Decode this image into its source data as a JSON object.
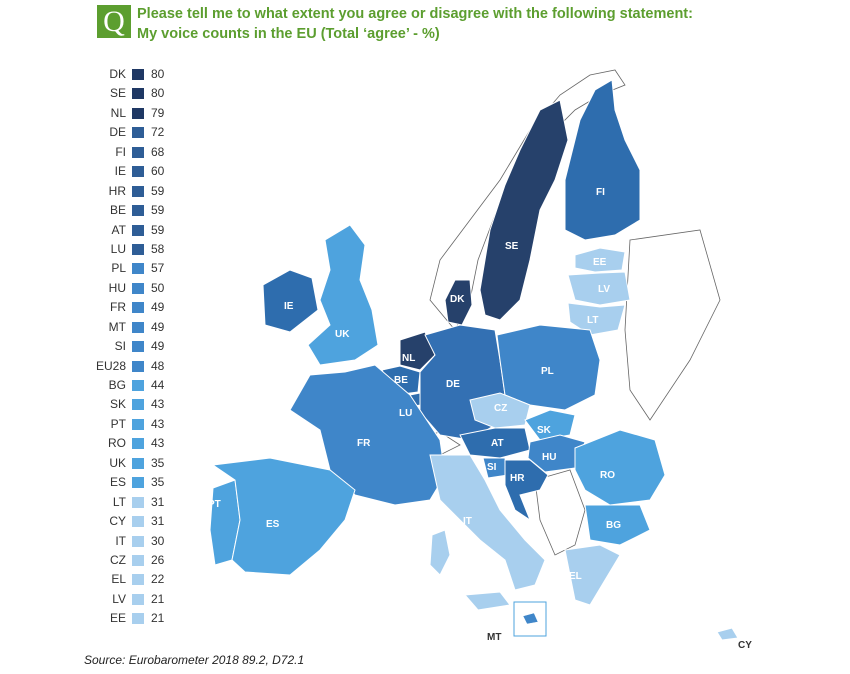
{
  "question_mark": "Q",
  "title": {
    "line1": "Please tell me to what extent you agree or disagree with the following statement:",
    "line2": "My voice counts in the EU (Total ‘agree’ - %)"
  },
  "legend": [
    {
      "code": "DK",
      "value": "80",
      "color": "#1f3864"
    },
    {
      "code": "SE",
      "value": "80",
      "color": "#1f3864"
    },
    {
      "code": "NL",
      "value": "79",
      "color": "#1f3864"
    },
    {
      "code": "DE",
      "value": "72",
      "color": "#2e5d96"
    },
    {
      "code": "FI",
      "value": "68",
      "color": "#2e5d96"
    },
    {
      "code": "IE",
      "value": "60",
      "color": "#2e5d96"
    },
    {
      "code": "HR",
      "value": "59",
      "color": "#2e5d96"
    },
    {
      "code": "BE",
      "value": "59",
      "color": "#2e5d96"
    },
    {
      "code": "AT",
      "value": "59",
      "color": "#2e5d96"
    },
    {
      "code": "LU",
      "value": "58",
      "color": "#2e5d96"
    },
    {
      "code": "PL",
      "value": "57",
      "color": "#3f86c9"
    },
    {
      "code": "HU",
      "value": "50",
      "color": "#3f86c9"
    },
    {
      "code": "FR",
      "value": "49",
      "color": "#3f86c9"
    },
    {
      "code": "MT",
      "value": "49",
      "color": "#3f86c9"
    },
    {
      "code": "SI",
      "value": "49",
      "color": "#3f86c9"
    },
    {
      "code": "EU28",
      "value": "48",
      "color": "#3f86c9"
    },
    {
      "code": "BG",
      "value": "44",
      "color": "#4ea3de"
    },
    {
      "code": "SK",
      "value": "43",
      "color": "#4ea3de"
    },
    {
      "code": "PT",
      "value": "43",
      "color": "#4ea3de"
    },
    {
      "code": "RO",
      "value": "43",
      "color": "#4ea3de"
    },
    {
      "code": "UK",
      "value": "35",
      "color": "#4ea3de"
    },
    {
      "code": "ES",
      "value": "35",
      "color": "#4ea3de"
    },
    {
      "code": "LT",
      "value": "31",
      "color": "#a8cfee"
    },
    {
      "code": "CY",
      "value": "31",
      "color": "#a8cfee"
    },
    {
      "code": "IT",
      "value": "30",
      "color": "#a8cfee"
    },
    {
      "code": "CZ",
      "value": "26",
      "color": "#a8cfee"
    },
    {
      "code": "EL",
      "value": "22",
      "color": "#a8cfee"
    },
    {
      "code": "LV",
      "value": "21",
      "color": "#a8cfee"
    },
    {
      "code": "EE",
      "value": "21",
      "color": "#a8cfee"
    }
  ],
  "map_labels": {
    "FI": "FI",
    "SE": "SE",
    "EE": "EE",
    "LV": "LV",
    "LT": "LT",
    "DK": "DK",
    "IE": "IE",
    "UK": "UK",
    "NL": "NL",
    "BE": "BE",
    "LU": "LU",
    "DE": "DE",
    "PL": "PL",
    "CZ": "CZ",
    "SK": "SK",
    "AT": "AT",
    "HU": "HU",
    "SI": "SI",
    "HR": "HR",
    "RO": "RO",
    "FR": "FR",
    "IT": "IT",
    "BG": "BG",
    "PT": "PT",
    "ES": "ES",
    "EL": "EL",
    "MT": "MT",
    "CY": "CY"
  },
  "source": "Source: Eurobarometer 2018 89.2, D72.1"
}
